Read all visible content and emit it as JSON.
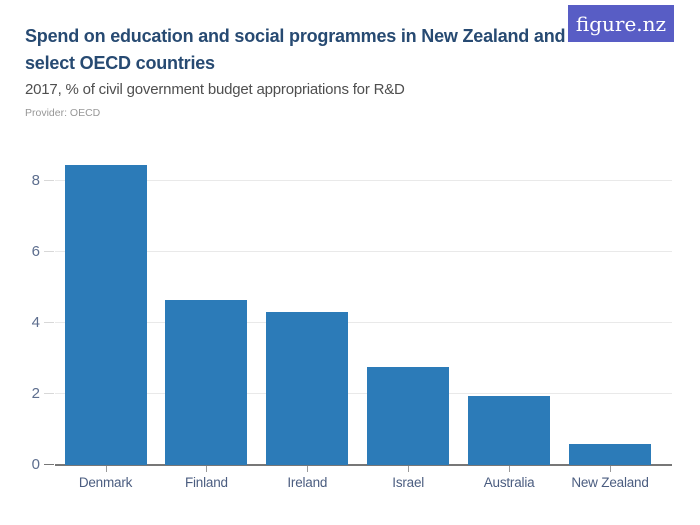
{
  "logo": {
    "text": "figure.nz",
    "bg_color": "#585dc5",
    "text_color": "#ffffff"
  },
  "header": {
    "title": "Spend on education and social programmes in New Zealand and select OECD countries",
    "title_lines": [
      "Spend on education and social programmes in New Zealand and",
      "select OECD countries"
    ],
    "subtitle": "2017, % of civil government budget appropriations for R&D",
    "provider": "Provider: OECD"
  },
  "colors": {
    "title": "#274a72",
    "subtitle": "#4f4f4f",
    "provider": "#979797",
    "bar": "#2c7bb8",
    "grid": "#e9e9e9",
    "axis": "#777777",
    "y_tick": "#d8d8d8",
    "x_tick": "#9a9a9a",
    "y_label": "#5d6e8e",
    "x_label": "#4b5d80",
    "background": "#ffffff"
  },
  "chart_data": {
    "type": "bar",
    "title": "Spend on education and social programmes in New Zealand and select OECD countries",
    "subtitle": "2017, % of civil government budget appropriations for R&D",
    "source": "Provider: OECD",
    "categories": [
      "Denmark",
      "Finland",
      "Ireland",
      "Israel",
      "Australia",
      "New Zealand"
    ],
    "values": [
      8.45,
      4.65,
      4.3,
      2.75,
      1.95,
      0.6
    ],
    "xlabel": "",
    "ylabel": "",
    "ylim": [
      0,
      9
    ],
    "yticks": [
      0,
      2,
      4,
      6,
      8
    ],
    "grid": true,
    "legend": false,
    "bar_color": "#2c7bb8"
  }
}
